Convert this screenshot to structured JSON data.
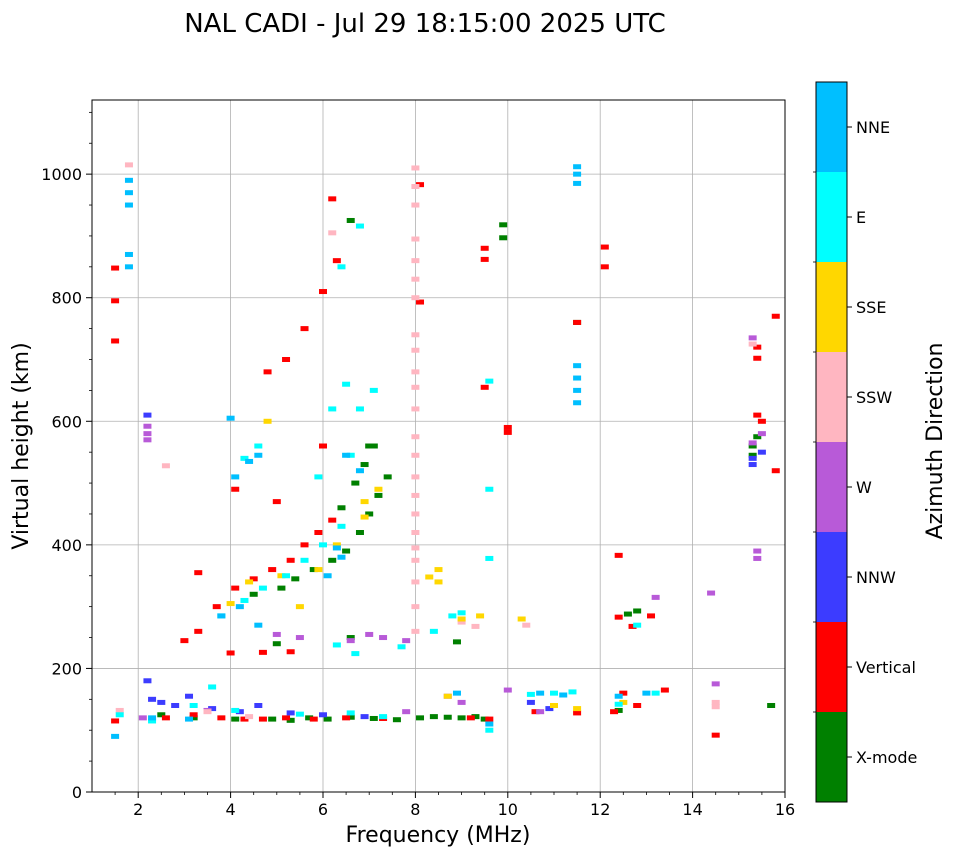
{
  "chart_data": {
    "type": "scatter",
    "title": "NAL CADI - Jul 29 18:15:00 2025 UTC",
    "xlabel": "Frequency (MHz)",
    "ylabel": "Virtual height (km)",
    "xlim": [
      1,
      16
    ],
    "ylim": [
      0,
      1120
    ],
    "xticks": [
      2,
      4,
      6,
      8,
      10,
      12,
      14,
      16
    ],
    "yticks": [
      0,
      200,
      400,
      600,
      800,
      1000
    ],
    "grid": true,
    "colorbar": {
      "label": "Azimuth Direction",
      "categories": [
        {
          "name": "X-mode",
          "color": "#008000"
        },
        {
          "name": "Vertical",
          "color": "#ff0000"
        },
        {
          "name": "NNW",
          "color": "#3c3cff"
        },
        {
          "name": "W",
          "color": "#b85ad8"
        },
        {
          "name": "SSW",
          "color": "#ffb6c1"
        },
        {
          "name": "SSE",
          "color": "#ffd700"
        },
        {
          "name": "E",
          "color": "#00ffff"
        },
        {
          "name": "NNE",
          "color": "#00bfff"
        }
      ]
    },
    "series": [
      {
        "name": "X-mode",
        "points": [
          [
            4.9,
            118
          ],
          [
            5.3,
            116
          ],
          [
            5.7,
            120
          ],
          [
            6.1,
            118
          ],
          [
            6.6,
            121
          ],
          [
            7.1,
            119
          ],
          [
            7.6,
            117
          ],
          [
            8.1,
            120
          ],
          [
            8.4,
            122
          ],
          [
            8.7,
            121
          ],
          [
            9.0,
            120
          ],
          [
            9.3,
            122
          ],
          [
            9.5,
            118
          ],
          [
            5.4,
            345
          ],
          [
            5.8,
            360
          ],
          [
            6.2,
            375
          ],
          [
            6.5,
            390
          ],
          [
            6.8,
            420
          ],
          [
            7.0,
            450
          ],
          [
            7.2,
            480
          ],
          [
            7.4,
            510
          ],
          [
            6.9,
            530
          ],
          [
            7.1,
            560
          ],
          [
            6.4,
            460
          ],
          [
            6.7,
            500
          ],
          [
            5.0,
            240
          ],
          [
            6.6,
            925
          ],
          [
            9.9,
            918
          ],
          [
            9.9,
            897
          ],
          [
            12.6,
            288
          ],
          [
            12.8,
            293
          ],
          [
            15.3,
            560
          ],
          [
            15.3,
            545
          ],
          [
            15.4,
            575
          ],
          [
            11.5,
            760
          ],
          [
            7.0,
            560
          ],
          [
            6.6,
            250
          ],
          [
            4.5,
            320
          ],
          [
            5.1,
            330
          ],
          [
            8.9,
            243
          ],
          [
            12.4,
            132
          ],
          [
            15.7,
            140
          ],
          [
            3.2,
            120
          ],
          [
            4.1,
            118
          ],
          [
            2.5,
            125
          ]
        ]
      },
      {
        "name": "Vertical",
        "points": [
          [
            1.5,
            115
          ],
          [
            2.6,
            120
          ],
          [
            3.2,
            125
          ],
          [
            3.8,
            120
          ],
          [
            4.3,
            118
          ],
          [
            4.7,
            118
          ],
          [
            5.2,
            120
          ],
          [
            5.8,
            118
          ],
          [
            6.5,
            120
          ],
          [
            7.3,
            119
          ],
          [
            9.2,
            120
          ],
          [
            9.6,
            118
          ],
          [
            3.0,
            245
          ],
          [
            3.3,
            260
          ],
          [
            3.7,
            300
          ],
          [
            4.1,
            330
          ],
          [
            4.5,
            345
          ],
          [
            4.9,
            360
          ],
          [
            5.3,
            375
          ],
          [
            5.6,
            400
          ],
          [
            5.9,
            420
          ],
          [
            6.2,
            440
          ],
          [
            4.8,
            680
          ],
          [
            5.2,
            700
          ],
          [
            5.6,
            750
          ],
          [
            6.0,
            810
          ],
          [
            6.3,
            860
          ],
          [
            4.1,
            490
          ],
          [
            5.0,
            470
          ],
          [
            6.0,
            560
          ],
          [
            1.5,
            848
          ],
          [
            1.5,
            795
          ],
          [
            1.5,
            730
          ],
          [
            8.1,
            983
          ],
          [
            8.1,
            793
          ],
          [
            9.5,
            880
          ],
          [
            9.5,
            862
          ],
          [
            9.5,
            655
          ],
          [
            10.0,
            582
          ],
          [
            10.0,
            590
          ],
          [
            12.1,
            882
          ],
          [
            12.1,
            850
          ],
          [
            12.4,
            383
          ],
          [
            12.4,
            283
          ],
          [
            12.7,
            268
          ],
          [
            13.1,
            285
          ],
          [
            13.4,
            165
          ],
          [
            12.5,
            160
          ],
          [
            12.8,
            140
          ],
          [
            14.5,
            92
          ],
          [
            15.4,
            702
          ],
          [
            15.4,
            720
          ],
          [
            15.4,
            610
          ],
          [
            15.5,
            600
          ],
          [
            15.8,
            770
          ],
          [
            15.8,
            520
          ],
          [
            3.3,
            355
          ],
          [
            4.0,
            225
          ],
          [
            4.7,
            226
          ],
          [
            5.3,
            227
          ],
          [
            6.2,
            960
          ],
          [
            11.5,
            760
          ],
          [
            11.5,
            128
          ],
          [
            10.6,
            130
          ],
          [
            12.3,
            130
          ]
        ]
      },
      {
        "name": "NNW",
        "points": [
          [
            2.2,
            180
          ],
          [
            2.3,
            150
          ],
          [
            2.8,
            140
          ],
          [
            3.1,
            155
          ],
          [
            3.6,
            135
          ],
          [
            4.2,
            130
          ],
          [
            5.3,
            128
          ],
          [
            6.0,
            125
          ],
          [
            6.9,
            122
          ],
          [
            2.2,
            610
          ],
          [
            2.5,
            145
          ],
          [
            4.6,
            140
          ],
          [
            15.3,
            530
          ],
          [
            15.3,
            540
          ],
          [
            15.5,
            550
          ],
          [
            10.5,
            145
          ],
          [
            10.9,
            135
          ]
        ]
      },
      {
        "name": "W",
        "points": [
          [
            2.2,
            592
          ],
          [
            2.2,
            580
          ],
          [
            2.2,
            570
          ],
          [
            5.0,
            255
          ],
          [
            5.5,
            250
          ],
          [
            6.6,
            245
          ],
          [
            7.0,
            255
          ],
          [
            7.3,
            250
          ],
          [
            7.8,
            245
          ],
          [
            7.8,
            130
          ],
          [
            8.7,
            155
          ],
          [
            9.0,
            145
          ],
          [
            10.0,
            165
          ],
          [
            10.7,
            130
          ],
          [
            11.0,
            140
          ],
          [
            13.2,
            315
          ],
          [
            14.4,
            322
          ],
          [
            14.5,
            175
          ],
          [
            15.4,
            390
          ],
          [
            15.4,
            378
          ],
          [
            15.3,
            735
          ],
          [
            15.3,
            565
          ],
          [
            15.5,
            580
          ],
          [
            2.1,
            120
          ],
          [
            3.5,
            132
          ]
        ]
      },
      {
        "name": "SSW",
        "points": [
          [
            1.8,
            1015
          ],
          [
            2.6,
            528
          ],
          [
            8.0,
            1010
          ],
          [
            8.0,
            980
          ],
          [
            8.0,
            950
          ],
          [
            8.0,
            895
          ],
          [
            8.0,
            860
          ],
          [
            8.0,
            830
          ],
          [
            8.0,
            800
          ],
          [
            8.0,
            740
          ],
          [
            8.0,
            715
          ],
          [
            8.0,
            680
          ],
          [
            8.0,
            655
          ],
          [
            8.0,
            620
          ],
          [
            8.0,
            575
          ],
          [
            8.0,
            545
          ],
          [
            8.0,
            510
          ],
          [
            8.0,
            480
          ],
          [
            8.0,
            450
          ],
          [
            8.0,
            420
          ],
          [
            8.0,
            395
          ],
          [
            8.0,
            375
          ],
          [
            8.0,
            340
          ],
          [
            8.0,
            300
          ],
          [
            8.0,
            260
          ],
          [
            9.0,
            275
          ],
          [
            9.3,
            268
          ],
          [
            10.4,
            270
          ],
          [
            14.5,
            145
          ],
          [
            14.5,
            138
          ],
          [
            15.3,
            725
          ],
          [
            3.5,
            130
          ],
          [
            4.4,
            122
          ],
          [
            6.2,
            905
          ],
          [
            1.6,
            132
          ]
        ]
      },
      {
        "name": "SSE",
        "points": [
          [
            4.0,
            305
          ],
          [
            4.4,
            340
          ],
          [
            5.1,
            350
          ],
          [
            5.5,
            300
          ],
          [
            5.9,
            360
          ],
          [
            6.3,
            400
          ],
          [
            6.9,
            470
          ],
          [
            7.2,
            490
          ],
          [
            8.5,
            360
          ],
          [
            8.7,
            155
          ],
          [
            9.0,
            280
          ],
          [
            9.4,
            285
          ],
          [
            10.3,
            280
          ],
          [
            11.0,
            140
          ],
          [
            11.5,
            135
          ],
          [
            12.5,
            145
          ],
          [
            8.3,
            348
          ],
          [
            8.5,
            340
          ],
          [
            6.9,
            445
          ],
          [
            4.8,
            600
          ]
        ]
      },
      {
        "name": "E",
        "points": [
          [
            1.6,
            125
          ],
          [
            2.3,
            115
          ],
          [
            3.2,
            140
          ],
          [
            3.6,
            170
          ],
          [
            4.1,
            132
          ],
          [
            5.5,
            126
          ],
          [
            6.6,
            128
          ],
          [
            7.3,
            122
          ],
          [
            3.8,
            285
          ],
          [
            4.3,
            310
          ],
          [
            4.7,
            330
          ],
          [
            5.2,
            350
          ],
          [
            5.6,
            375
          ],
          [
            6.0,
            400
          ],
          [
            6.4,
            430
          ],
          [
            6.5,
            660
          ],
          [
            6.8,
            620
          ],
          [
            7.1,
            650
          ],
          [
            6.2,
            620
          ],
          [
            6.6,
            545
          ],
          [
            4.3,
            540
          ],
          [
            4.6,
            560
          ],
          [
            5.9,
            510
          ],
          [
            6.4,
            850
          ],
          [
            6.8,
            916
          ],
          [
            8.4,
            260
          ],
          [
            8.8,
            285
          ],
          [
            9.0,
            290
          ],
          [
            9.6,
            665
          ],
          [
            9.6,
            490
          ],
          [
            9.6,
            378
          ],
          [
            9.6,
            100
          ],
          [
            10.5,
            158
          ],
          [
            11.0,
            160
          ],
          [
            11.4,
            162
          ],
          [
            12.4,
            142
          ],
          [
            12.8,
            270
          ],
          [
            13.2,
            160
          ],
          [
            6.7,
            224
          ],
          [
            6.3,
            238
          ],
          [
            7.7,
            235
          ]
        ]
      },
      {
        "name": "NNE",
        "points": [
          [
            1.5,
            90
          ],
          [
            1.8,
            990
          ],
          [
            1.8,
            970
          ],
          [
            1.8,
            950
          ],
          [
            1.8,
            870
          ],
          [
            1.8,
            850
          ],
          [
            4.0,
            605
          ],
          [
            4.4,
            535
          ],
          [
            4.6,
            545
          ],
          [
            6.4,
            380
          ],
          [
            6.3,
            395
          ],
          [
            6.1,
            350
          ],
          [
            4.6,
            270
          ],
          [
            4.1,
            510
          ],
          [
            3.8,
            285
          ],
          [
            4.2,
            300
          ],
          [
            11.5,
            1012
          ],
          [
            11.5,
            1000
          ],
          [
            11.5,
            985
          ],
          [
            11.5,
            690
          ],
          [
            11.5,
            670
          ],
          [
            11.5,
            650
          ],
          [
            11.5,
            630
          ],
          [
            8.9,
            160
          ],
          [
            9.6,
            110
          ],
          [
            10.7,
            160
          ],
          [
            11.2,
            157
          ],
          [
            12.4,
            155
          ],
          [
            13.0,
            160
          ],
          [
            6.5,
            545
          ],
          [
            6.8,
            520
          ],
          [
            2.3,
            120
          ],
          [
            3.1,
            118
          ]
        ]
      }
    ]
  }
}
